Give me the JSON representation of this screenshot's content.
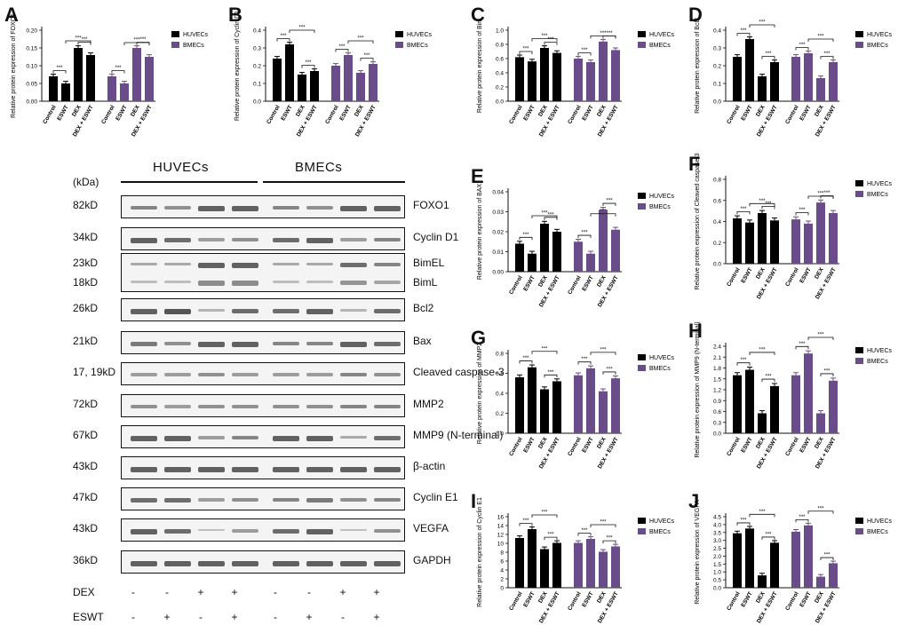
{
  "blot": {
    "group_labels": [
      "HUVECs",
      "BMECs"
    ],
    "kda_header": "(kDa)",
    "rows": [
      {
        "kda": "82kD",
        "name": "FOXO1"
      },
      {
        "kda": "34kD",
        "name": "Cyclin D1"
      },
      {
        "kda": "23kD",
        "name": "BimEL",
        "kda2": "18kD",
        "name2": "BimL",
        "tall": true
      },
      {
        "kda": "26kD",
        "name": "Bcl2"
      },
      {
        "kda": "21kD",
        "name": "Bax"
      },
      {
        "kda": "17, 19kD",
        "name": "Cleaved caspase-3"
      },
      {
        "kda": "72kD",
        "name": "MMP2"
      },
      {
        "kda": "67kD",
        "name": "MMP9 (N-terminal)"
      },
      {
        "kda": "43kD",
        "name": "β-actin"
      },
      {
        "kda": "47kD",
        "name": "Cyclin E1"
      },
      {
        "kda": "43kD",
        "name": "VEGFA"
      },
      {
        "kda": "36kD",
        "name": "GAPDH"
      }
    ],
    "treatments": [
      {
        "label": "DEX",
        "marks": [
          "-",
          "-",
          "+",
          "+",
          "-",
          "-",
          "+",
          "+"
        ]
      },
      {
        "label": "ESWT",
        "marks": [
          "-",
          "+",
          "-",
          "+",
          "-",
          "+",
          "-",
          "+"
        ]
      }
    ]
  },
  "chart_data": [
    {
      "panel": "A",
      "type": "bar",
      "ylabel": "Relative protein expression of FOXO1",
      "yticks": [
        "0.00",
        "0.05",
        "0.10",
        "0.15",
        "0.20"
      ],
      "ylim": [
        0,
        0.2
      ],
      "categories": [
        "Control",
        "ESWT",
        "DEX",
        "DEX + ESWT"
      ],
      "series": [
        {
          "name": "HUVECs",
          "values": [
            0.07,
            0.05,
            0.15,
            0.13
          ]
        },
        {
          "name": "BMECs",
          "values": [
            0.07,
            0.05,
            0.15,
            0.125
          ]
        }
      ],
      "sig": "***",
      "colors": [
        "#000000",
        "#6b4c8a"
      ]
    },
    {
      "panel": "B",
      "type": "bar",
      "ylabel": "Relative protein expression of Cyclin D1",
      "yticks": [
        "0.0",
        "0.1",
        "0.2",
        "0.3",
        "0.4"
      ],
      "ylim": [
        0,
        0.4
      ],
      "categories": [
        "Control",
        "ESWT",
        "DEX",
        "DEX + ESWT"
      ],
      "series": [
        {
          "name": "HUVECs",
          "values": [
            0.24,
            0.32,
            0.15,
            0.17
          ]
        },
        {
          "name": "BMECs",
          "values": [
            0.2,
            0.26,
            0.16,
            0.21
          ]
        }
      ],
      "sig": "***",
      "colors": [
        "#000000",
        "#6b4c8a"
      ]
    },
    {
      "panel": "C",
      "type": "bar",
      "ylabel": "Relative protein expression of Bim",
      "yticks": [
        "0.0",
        "0.2",
        "0.4",
        "0.6",
        "0.8",
        "1.0"
      ],
      "ylim": [
        0,
        1.0
      ],
      "categories": [
        "Control",
        "ESWT",
        "DEX",
        "DEX + ESWT"
      ],
      "series": [
        {
          "name": "HUVECs",
          "values": [
            0.62,
            0.56,
            0.75,
            0.68
          ]
        },
        {
          "name": "BMECs",
          "values": [
            0.6,
            0.55,
            0.84,
            0.72
          ]
        }
      ],
      "sig": "***",
      "colors": [
        "#000000",
        "#6b4c8a"
      ]
    },
    {
      "panel": "D",
      "type": "bar",
      "ylabel": "Relative protein expression of Bcl2",
      "yticks": [
        "0.0",
        "0.1",
        "0.2",
        "0.3",
        "0.4"
      ],
      "ylim": [
        0,
        0.4
      ],
      "categories": [
        "Control",
        "ESWT",
        "DEX",
        "DEX + ESWT"
      ],
      "series": [
        {
          "name": "HUVECs",
          "values": [
            0.25,
            0.35,
            0.14,
            0.22
          ]
        },
        {
          "name": "BMECs",
          "values": [
            0.25,
            0.27,
            0.13,
            0.22
          ]
        }
      ],
      "sig": "***",
      "colors": [
        "#000000",
        "#6b4c8a"
      ]
    },
    {
      "panel": "E",
      "type": "bar",
      "ylabel": "Relative protein expression of BAX",
      "yticks": [
        "0.00",
        "0.01",
        "0.02",
        "0.03",
        "0.04"
      ],
      "ylim": [
        0,
        0.04
      ],
      "categories": [
        "Control",
        "ESWT",
        "DEX",
        "DEX + ESWT"
      ],
      "series": [
        {
          "name": "HUVECs",
          "values": [
            0.014,
            0.009,
            0.024,
            0.02
          ]
        },
        {
          "name": "BMECs",
          "values": [
            0.015,
            0.009,
            0.031,
            0.021
          ]
        }
      ],
      "sig": "***",
      "colors": [
        "#000000",
        "#6b4c8a"
      ]
    },
    {
      "panel": "F",
      "type": "bar",
      "ylabel": "Relative protein expression of Cleaved caspase-3",
      "yticks": [
        "0.0",
        "0.2",
        "0.4",
        "0.6",
        "0.8"
      ],
      "ylim": [
        0,
        0.8
      ],
      "categories": [
        "Control",
        "ESWT",
        "DEX",
        "DEX + ESWT"
      ],
      "series": [
        {
          "name": "HUVECs",
          "values": [
            0.43,
            0.39,
            0.48,
            0.41
          ]
        },
        {
          "name": "BMECs",
          "values": [
            0.42,
            0.38,
            0.58,
            0.48
          ]
        }
      ],
      "sig": "***",
      "colors": [
        "#000000",
        "#6b4c8a"
      ]
    },
    {
      "panel": "G",
      "type": "bar",
      "ylabel": "Relative protein expression of MMP2",
      "yticks": [
        "0.0",
        "0.2",
        "0.4",
        "0.6",
        "0.8"
      ],
      "ylim": [
        0,
        0.8
      ],
      "categories": [
        "Control",
        "ESWT",
        "DEX",
        "DEX + ESWT"
      ],
      "series": [
        {
          "name": "HUVECs",
          "values": [
            0.56,
            0.66,
            0.44,
            0.52
          ]
        },
        {
          "name": "BMECs",
          "values": [
            0.58,
            0.65,
            0.42,
            0.55
          ]
        }
      ],
      "sig": "***",
      "colors": [
        "#000000",
        "#6b4c8a"
      ]
    },
    {
      "panel": "H",
      "type": "bar",
      "ylabel": "Relative protein expression of MMP9 (N-terminal)",
      "yticks": [
        "0.0",
        "0.3",
        "0.6",
        "0.9",
        "1.2",
        "1.5",
        "1.8",
        "2.1",
        "2.4"
      ],
      "ylim": [
        0,
        2.4
      ],
      "categories": [
        "Control",
        "ESWT",
        "DEX",
        "DEX + ESWT"
      ],
      "series": [
        {
          "name": "HUVECs",
          "values": [
            1.6,
            1.75,
            0.55,
            1.3
          ]
        },
        {
          "name": "BMECs",
          "values": [
            1.6,
            2.2,
            0.55,
            1.45
          ]
        }
      ],
      "sig": "***",
      "colors": [
        "#000000",
        "#6b4c8a"
      ]
    },
    {
      "panel": "I",
      "type": "bar",
      "ylabel": "Relative protein expression of Cyclin E1",
      "yticks": [
        "0",
        "2",
        "4",
        "6",
        "8",
        "10",
        "12",
        "14",
        "16"
      ],
      "ylim": [
        0,
        16
      ],
      "categories": [
        "Control",
        "ESWT",
        "DEX",
        "DEX + ESWT"
      ],
      "series": [
        {
          "name": "HUVECs",
          "values": [
            11.2,
            13.2,
            8.7,
            10.1
          ]
        },
        {
          "name": "BMECs",
          "values": [
            10.1,
            11.0,
            8.1,
            9.3
          ]
        }
      ],
      "sig": "***",
      "colors": [
        "#000000",
        "#6b4c8a"
      ]
    },
    {
      "panel": "J",
      "type": "bar",
      "ylabel": "Relative protein expression of VEGFA",
      "yticks": [
        "0.0",
        "0.5",
        "1.0",
        "1.5",
        "2.0",
        "2.5",
        "3.0",
        "3.5",
        "4.0",
        "4.5"
      ],
      "ylim": [
        0,
        4.5
      ],
      "categories": [
        "Control",
        "ESWT",
        "DEX",
        "DEX + ESWT"
      ],
      "series": [
        {
          "name": "HUVECs",
          "values": [
            3.45,
            3.75,
            0.78,
            2.85
          ]
        },
        {
          "name": "BMECs",
          "values": [
            3.55,
            3.95,
            0.7,
            1.55
          ]
        }
      ],
      "sig": "***",
      "colors": [
        "#000000",
        "#6b4c8a"
      ]
    }
  ]
}
